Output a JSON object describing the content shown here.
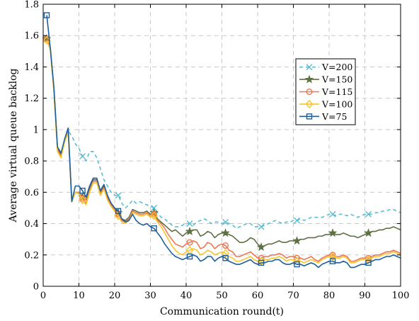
{
  "chart_data": {
    "type": "line",
    "title": "",
    "xlabel": "Communication round(t)",
    "ylabel": "Average virtual queue backlog",
    "xlim": [
      0,
      100
    ],
    "ylim": [
      0,
      1.8
    ],
    "xticks": [
      0,
      10,
      20,
      30,
      40,
      50,
      60,
      70,
      80,
      90,
      100
    ],
    "yticks": [
      0,
      0.2,
      0.4,
      0.6,
      0.8,
      1,
      1.2,
      1.4,
      1.6,
      1.8
    ],
    "x_tick_labels": [
      "0",
      "10",
      "20",
      "30",
      "40",
      "50",
      "60",
      "70",
      "80",
      "90",
      "100"
    ],
    "y_tick_labels": [
      "0",
      "0.2",
      "0.4",
      "0.6",
      "0.8",
      "1",
      "1.2",
      "1.4",
      "1.6",
      "1.8"
    ],
    "grid": true,
    "legend_position": "right",
    "marker_every": 10,
    "series": [
      {
        "name": "V=200",
        "color": "#5bbdd0",
        "linestyle": "dashed",
        "marker": "x",
        "x": [
          1,
          2,
          3,
          4,
          5,
          6,
          7,
          8,
          9,
          10,
          11,
          12,
          13,
          14,
          15,
          16,
          17,
          18,
          19,
          20,
          21,
          22,
          23,
          24,
          25,
          26,
          27,
          28,
          29,
          30,
          31,
          32,
          33,
          34,
          35,
          36,
          37,
          38,
          39,
          40,
          41,
          42,
          43,
          44,
          45,
          46,
          47,
          48,
          49,
          50,
          51,
          52,
          53,
          54,
          55,
          56,
          57,
          58,
          59,
          60,
          61,
          62,
          63,
          64,
          65,
          66,
          67,
          68,
          69,
          70,
          71,
          72,
          73,
          74,
          75,
          76,
          77,
          78,
          79,
          80,
          81,
          82,
          83,
          84,
          85,
          86,
          87,
          88,
          89,
          90,
          91,
          92,
          93,
          94,
          95,
          96,
          97,
          98,
          99,
          100
        ],
        "y": [
          1.58,
          1.52,
          1.25,
          0.87,
          0.83,
          0.93,
          0.99,
          0.96,
          0.91,
          0.88,
          0.83,
          0.8,
          0.86,
          0.86,
          0.82,
          0.75,
          0.68,
          0.64,
          0.6,
          0.58,
          0.58,
          0.53,
          0.5,
          0.52,
          0.55,
          0.53,
          0.54,
          0.53,
          0.52,
          0.51,
          0.5,
          0.47,
          0.44,
          0.43,
          0.41,
          0.39,
          0.38,
          0.38,
          0.39,
          0.4,
          0.4,
          0.39,
          0.41,
          0.42,
          0.43,
          0.42,
          0.4,
          0.41,
          0.41,
          0.4,
          0.41,
          0.4,
          0.39,
          0.37,
          0.38,
          0.39,
          0.4,
          0.4,
          0.38,
          0.38,
          0.38,
          0.39,
          0.4,
          0.41,
          0.42,
          0.41,
          0.4,
          0.41,
          0.41,
          0.42,
          0.42,
          0.43,
          0.42,
          0.43,
          0.44,
          0.44,
          0.44,
          0.44,
          0.45,
          0.46,
          0.46,
          0.45,
          0.46,
          0.46,
          0.45,
          0.46,
          0.45,
          0.44,
          0.45,
          0.46,
          0.46,
          0.46,
          0.47,
          0.47,
          0.48,
          0.48,
          0.49,
          0.49,
          0.48,
          0.47
        ]
      },
      {
        "name": "V=150",
        "color": "#5e7044",
        "linestyle": "solid",
        "marker": "star",
        "x": [
          1,
          2,
          3,
          4,
          5,
          6,
          7,
          8,
          9,
          10,
          11,
          12,
          13,
          14,
          15,
          16,
          17,
          18,
          19,
          20,
          21,
          22,
          23,
          24,
          25,
          26,
          27,
          28,
          29,
          30,
          31,
          32,
          33,
          34,
          35,
          36,
          37,
          38,
          39,
          40,
          41,
          42,
          43,
          44,
          45,
          46,
          47,
          48,
          49,
          50,
          51,
          52,
          53,
          54,
          55,
          56,
          57,
          58,
          59,
          60,
          61,
          62,
          63,
          64,
          65,
          66,
          67,
          68,
          69,
          70,
          71,
          72,
          73,
          74,
          75,
          76,
          77,
          78,
          79,
          80,
          81,
          82,
          83,
          84,
          85,
          86,
          87,
          88,
          89,
          90,
          91,
          92,
          93,
          94,
          95,
          96,
          97,
          98,
          99,
          100
        ],
        "y": [
          1.58,
          1.52,
          1.26,
          0.88,
          0.84,
          0.93,
          1.0,
          0.55,
          0.6,
          0.6,
          0.57,
          0.55,
          0.62,
          0.68,
          0.68,
          0.6,
          0.64,
          0.57,
          0.53,
          0.5,
          0.47,
          0.43,
          0.42,
          0.44,
          0.49,
          0.48,
          0.47,
          0.47,
          0.48,
          0.46,
          0.47,
          0.43,
          0.41,
          0.39,
          0.37,
          0.35,
          0.36,
          0.34,
          0.32,
          0.34,
          0.35,
          0.36,
          0.36,
          0.32,
          0.33,
          0.35,
          0.34,
          0.31,
          0.33,
          0.34,
          0.34,
          0.33,
          0.32,
          0.3,
          0.28,
          0.28,
          0.29,
          0.31,
          0.3,
          0.27,
          0.25,
          0.26,
          0.27,
          0.27,
          0.28,
          0.29,
          0.28,
          0.28,
          0.29,
          0.29,
          0.29,
          0.3,
          0.3,
          0.31,
          0.31,
          0.31,
          0.32,
          0.32,
          0.33,
          0.33,
          0.34,
          0.33,
          0.33,
          0.34,
          0.33,
          0.32,
          0.32,
          0.31,
          0.32,
          0.33,
          0.34,
          0.35,
          0.35,
          0.36,
          0.36,
          0.37,
          0.37,
          0.38,
          0.37,
          0.36
        ]
      },
      {
        "name": "V=115",
        "color": "#ec7752",
        "linestyle": "solid",
        "marker": "circle",
        "x": [
          1,
          2,
          3,
          4,
          5,
          6,
          7,
          8,
          9,
          10,
          11,
          12,
          13,
          14,
          15,
          16,
          17,
          18,
          19,
          20,
          21,
          22,
          23,
          24,
          25,
          26,
          27,
          28,
          29,
          30,
          31,
          32,
          33,
          34,
          35,
          36,
          37,
          38,
          39,
          40,
          41,
          42,
          43,
          44,
          45,
          46,
          47,
          48,
          49,
          50,
          51,
          52,
          53,
          54,
          55,
          56,
          57,
          58,
          59,
          60,
          61,
          62,
          63,
          64,
          65,
          66,
          67,
          68,
          69,
          70,
          71,
          72,
          73,
          74,
          75,
          76,
          77,
          78,
          79,
          80,
          81,
          82,
          83,
          84,
          85,
          86,
          87,
          88,
          89,
          90,
          91,
          92,
          93,
          94,
          95,
          96,
          97,
          98,
          99,
          100
        ],
        "y": [
          1.58,
          1.51,
          1.25,
          0.87,
          0.83,
          0.93,
          0.99,
          0.54,
          0.6,
          0.6,
          0.56,
          0.53,
          0.61,
          0.67,
          0.67,
          0.59,
          0.63,
          0.56,
          0.52,
          0.49,
          0.46,
          0.42,
          0.41,
          0.43,
          0.48,
          0.47,
          0.46,
          0.46,
          0.47,
          0.45,
          0.46,
          0.42,
          0.4,
          0.37,
          0.33,
          0.3,
          0.27,
          0.26,
          0.25,
          0.27,
          0.28,
          0.29,
          0.28,
          0.24,
          0.25,
          0.28,
          0.27,
          0.24,
          0.26,
          0.27,
          0.26,
          0.23,
          0.22,
          0.19,
          0.19,
          0.2,
          0.21,
          0.22,
          0.2,
          0.18,
          0.18,
          0.19,
          0.19,
          0.2,
          0.2,
          0.21,
          0.2,
          0.18,
          0.19,
          0.19,
          0.18,
          0.18,
          0.17,
          0.18,
          0.19,
          0.17,
          0.16,
          0.18,
          0.19,
          0.2,
          0.2,
          0.19,
          0.19,
          0.2,
          0.19,
          0.16,
          0.16,
          0.17,
          0.18,
          0.18,
          0.18,
          0.19,
          0.2,
          0.2,
          0.21,
          0.22,
          0.22,
          0.23,
          0.22,
          0.21
        ]
      },
      {
        "name": "V=100",
        "color": "#f5c531",
        "linestyle": "solid",
        "marker": "diamond",
        "x": [
          1,
          2,
          3,
          4,
          5,
          6,
          7,
          8,
          9,
          10,
          11,
          12,
          13,
          14,
          15,
          16,
          17,
          18,
          19,
          20,
          21,
          22,
          23,
          24,
          25,
          26,
          27,
          28,
          29,
          30,
          31,
          32,
          33,
          34,
          35,
          36,
          37,
          38,
          39,
          40,
          41,
          42,
          43,
          44,
          45,
          46,
          47,
          48,
          49,
          50,
          51,
          52,
          53,
          54,
          55,
          56,
          57,
          58,
          59,
          60,
          61,
          62,
          63,
          64,
          65,
          66,
          67,
          68,
          69,
          70,
          71,
          72,
          73,
          74,
          75,
          76,
          77,
          78,
          79,
          80,
          81,
          82,
          83,
          84,
          85,
          86,
          87,
          88,
          89,
          90,
          91,
          92,
          93,
          94,
          95,
          96,
          97,
          98,
          99,
          100
        ],
        "y": [
          1.57,
          1.51,
          1.24,
          0.86,
          0.82,
          0.92,
          0.98,
          0.54,
          0.6,
          0.59,
          0.55,
          0.52,
          0.6,
          0.66,
          0.66,
          0.58,
          0.62,
          0.55,
          0.51,
          0.48,
          0.45,
          0.41,
          0.4,
          0.42,
          0.47,
          0.46,
          0.45,
          0.45,
          0.46,
          0.44,
          0.45,
          0.41,
          0.38,
          0.34,
          0.3,
          0.26,
          0.23,
          0.21,
          0.2,
          0.22,
          0.23,
          0.24,
          0.23,
          0.2,
          0.21,
          0.23,
          0.22,
          0.2,
          0.21,
          0.22,
          0.21,
          0.19,
          0.18,
          0.16,
          0.16,
          0.17,
          0.18,
          0.19,
          0.17,
          0.16,
          0.16,
          0.17,
          0.17,
          0.18,
          0.18,
          0.19,
          0.18,
          0.16,
          0.17,
          0.17,
          0.16,
          0.16,
          0.15,
          0.16,
          0.17,
          0.16,
          0.15,
          0.17,
          0.18,
          0.19,
          0.19,
          0.18,
          0.18,
          0.19,
          0.18,
          0.15,
          0.15,
          0.16,
          0.17,
          0.17,
          0.17,
          0.18,
          0.19,
          0.19,
          0.2,
          0.21,
          0.21,
          0.22,
          0.21,
          0.2
        ]
      },
      {
        "name": "V=75",
        "color": "#1e5f99",
        "linestyle": "solid",
        "marker": "square",
        "x": [
          1,
          2,
          3,
          4,
          5,
          6,
          7,
          8,
          9,
          10,
          11,
          12,
          13,
          14,
          15,
          16,
          17,
          18,
          19,
          20,
          21,
          22,
          23,
          24,
          25,
          26,
          27,
          28,
          29,
          30,
          31,
          32,
          33,
          34,
          35,
          36,
          37,
          38,
          39,
          40,
          41,
          42,
          43,
          44,
          45,
          46,
          47,
          48,
          49,
          50,
          51,
          52,
          53,
          54,
          55,
          56,
          57,
          58,
          59,
          60,
          61,
          62,
          63,
          64,
          65,
          66,
          67,
          68,
          69,
          70,
          71,
          72,
          73,
          74,
          75,
          76,
          77,
          78,
          79,
          80,
          81,
          82,
          83,
          84,
          85,
          86,
          87,
          88,
          89,
          90,
          91,
          92,
          93,
          94,
          95,
          96,
          97,
          98,
          99,
          100
        ],
        "y": [
          1.73,
          1.52,
          1.27,
          0.89,
          0.85,
          0.94,
          1.01,
          0.54,
          0.64,
          0.64,
          0.61,
          0.57,
          0.64,
          0.69,
          0.69,
          0.61,
          0.65,
          0.58,
          0.53,
          0.5,
          0.48,
          0.43,
          0.41,
          0.42,
          0.46,
          0.42,
          0.4,
          0.39,
          0.4,
          0.38,
          0.37,
          0.34,
          0.31,
          0.27,
          0.24,
          0.21,
          0.19,
          0.18,
          0.17,
          0.18,
          0.19,
          0.2,
          0.19,
          0.16,
          0.17,
          0.19,
          0.19,
          0.16,
          0.18,
          0.19,
          0.18,
          0.16,
          0.15,
          0.14,
          0.14,
          0.15,
          0.16,
          0.17,
          0.15,
          0.14,
          0.15,
          0.15,
          0.16,
          0.16,
          0.17,
          0.17,
          0.15,
          0.14,
          0.14,
          0.15,
          0.14,
          0.14,
          0.13,
          0.14,
          0.15,
          0.14,
          0.12,
          0.14,
          0.15,
          0.16,
          0.16,
          0.15,
          0.15,
          0.16,
          0.15,
          0.12,
          0.12,
          0.13,
          0.14,
          0.14,
          0.15,
          0.16,
          0.17,
          0.17,
          0.18,
          0.19,
          0.19,
          0.2,
          0.19,
          0.18
        ]
      }
    ]
  }
}
